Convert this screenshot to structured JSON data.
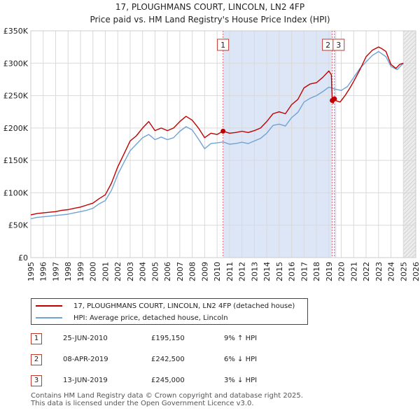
{
  "chart_data": {
    "type": "line",
    "title": "17, PLOUGHMANS COURT, LINCOLN, LN2 4FP",
    "subtitle": "Price paid vs. HM Land Registry's House Price Index (HPI)",
    "xlabel": "",
    "ylabel": "",
    "xlim": [
      1995,
      2026
    ],
    "ylim": [
      0,
      350000
    ],
    "x_ticks": [
      "1995",
      "1996",
      "1997",
      "1998",
      "1999",
      "2000",
      "2001",
      "2002",
      "2003",
      "2004",
      "2005",
      "2006",
      "2007",
      "2008",
      "2009",
      "2010",
      "2011",
      "2012",
      "2013",
      "2014",
      "2015",
      "2016",
      "2017",
      "2018",
      "2019",
      "2020",
      "2021",
      "2022",
      "2023",
      "2024",
      "2025",
      "2026"
    ],
    "y_ticks": [
      {
        "value": 0,
        "label": "£0"
      },
      {
        "value": 50000,
        "label": "£50K"
      },
      {
        "value": 100000,
        "label": "£100K"
      },
      {
        "value": 150000,
        "label": "£150K"
      },
      {
        "value": 200000,
        "label": "£200K"
      },
      {
        "value": 250000,
        "label": "£250K"
      },
      {
        "value": 300000,
        "label": "£300K"
      },
      {
        "value": 350000,
        "label": "£350K"
      }
    ],
    "grid": true,
    "shaded_regions": [
      {
        "x0": 2010.48,
        "x1": 2019.27,
        "color": "#dde6f6"
      },
      {
        "x0": 2019.45,
        "x1": 2019.6,
        "color": "#dde6f6"
      },
      {
        "x0": 2025.0,
        "x1": 2026.0,
        "color": "#e8e8e8",
        "hatched": true
      }
    ],
    "series": [
      {
        "name": "17, PLOUGHMANS COURT, LINCOLN, LN2 4FP (detached house)",
        "color": "#c00000",
        "x": [
          1995.0,
          1995.5,
          1996.0,
          1996.5,
          1997.0,
          1997.5,
          1998.0,
          1998.5,
          1999.0,
          1999.5,
          2000.0,
          2000.5,
          2001.0,
          2001.5,
          2002.0,
          2002.5,
          2003.0,
          2003.5,
          2004.0,
          2004.5,
          2005.0,
          2005.5,
          2006.0,
          2006.5,
          2007.0,
          2007.5,
          2008.0,
          2008.5,
          2009.0,
          2009.5,
          2010.0,
          2010.48,
          2011.0,
          2011.5,
          2012.0,
          2012.5,
          2013.0,
          2013.5,
          2014.0,
          2014.5,
          2015.0,
          2015.5,
          2016.0,
          2016.5,
          2017.0,
          2017.5,
          2018.0,
          2018.5,
          2019.0,
          2019.2,
          2019.27,
          2019.35,
          2019.45,
          2019.6,
          2019.9,
          2020.3,
          2020.7,
          2021.0,
          2021.5,
          2022.0,
          2022.5,
          2023.0,
          2023.3,
          2023.6,
          2024.0,
          2024.4,
          2024.7,
          2025.0
        ],
        "values": [
          66000,
          68000,
          69000,
          70000,
          71000,
          73000,
          74000,
          76000,
          78000,
          81000,
          84000,
          91000,
          97000,
          115000,
          140000,
          160000,
          180000,
          188000,
          200000,
          210000,
          196000,
          200000,
          196000,
          200000,
          210000,
          218000,
          212000,
          200000,
          185000,
          192000,
          190000,
          195150,
          192000,
          193000,
          195000,
          193000,
          196000,
          200000,
          210000,
          222000,
          225000,
          222000,
          236000,
          244000,
          262000,
          268000,
          270000,
          278000,
          288000,
          282000,
          242500,
          238000,
          245000,
          242000,
          240000,
          250000,
          262000,
          272000,
          290000,
          310000,
          320000,
          325000,
          322000,
          318000,
          298000,
          292000,
          298000,
          300000
        ]
      },
      {
        "name": "HPI: Average price, detached house, Lincoln",
        "color": "#6fa3d6",
        "x": [
          1995.0,
          1995.5,
          1996.0,
          1996.5,
          1997.0,
          1997.5,
          1998.0,
          1998.5,
          1999.0,
          1999.5,
          2000.0,
          2000.5,
          2001.0,
          2001.5,
          2002.0,
          2002.5,
          2003.0,
          2003.5,
          2004.0,
          2004.5,
          2005.0,
          2005.5,
          2006.0,
          2006.5,
          2007.0,
          2007.5,
          2008.0,
          2008.5,
          2009.0,
          2009.5,
          2010.0,
          2010.5,
          2011.0,
          2011.5,
          2012.0,
          2012.5,
          2013.0,
          2013.5,
          2014.0,
          2014.5,
          2015.0,
          2015.5,
          2016.0,
          2016.5,
          2017.0,
          2017.5,
          2018.0,
          2018.5,
          2019.0,
          2019.5,
          2020.0,
          2020.5,
          2021.0,
          2021.5,
          2022.0,
          2022.5,
          2023.0,
          2023.3,
          2023.6,
          2024.0,
          2024.5,
          2025.0
        ],
        "values": [
          60000,
          62000,
          63000,
          64000,
          65000,
          66000,
          67000,
          69000,
          71000,
          73000,
          76000,
          83000,
          88000,
          104000,
          128000,
          147000,
          165000,
          175000,
          185000,
          190000,
          182000,
          186000,
          182000,
          185000,
          195000,
          202000,
          197000,
          183000,
          168000,
          176000,
          177000,
          178500,
          175000,
          176000,
          178000,
          176000,
          180000,
          184000,
          192000,
          204000,
          206000,
          203000,
          216000,
          224000,
          240000,
          246000,
          250000,
          256000,
          263000,
          260000,
          258000,
          264000,
          278000,
          292000,
          302000,
          312000,
          318000,
          314000,
          310000,
          295000,
          290000,
          300000
        ]
      }
    ],
    "markers": [
      {
        "label": "1",
        "x": 2010.48,
        "y": 195150
      },
      {
        "label": "2",
        "x": 2019.27,
        "y": 242500
      },
      {
        "label": "3",
        "x": 2019.45,
        "y": 245000
      }
    ]
  },
  "legend": [
    {
      "label": "17, PLOUGHMANS COURT, LINCOLN, LN2 4FP (detached house)",
      "color": "#c00000"
    },
    {
      "label": "HPI: Average price, detached house, Lincoln",
      "color": "#6fa3d6"
    }
  ],
  "sales": [
    {
      "num": "1",
      "date": "25-JUN-2010",
      "price": "£195,150",
      "hpi": "9% ↑ HPI"
    },
    {
      "num": "2",
      "date": "08-APR-2019",
      "price": "£242,500",
      "hpi": "6% ↓ HPI"
    },
    {
      "num": "3",
      "date": "13-JUN-2019",
      "price": "£245,000",
      "hpi": "3% ↓ HPI"
    }
  ],
  "footer": {
    "line1": "Contains HM Land Registry data © Crown copyright and database right 2025.",
    "line2": "This data is licensed under the Open Government Licence v3.0."
  }
}
